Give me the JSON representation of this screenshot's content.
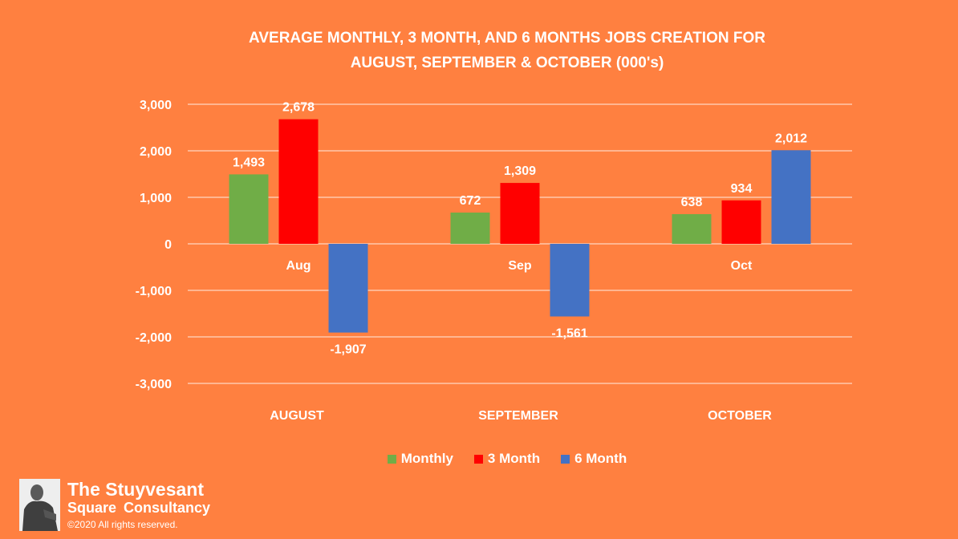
{
  "title_lines": [
    "AVERAGE MONTHLY, 3 MONTH, AND 6 MONTHS JOBS CREATION  FOR",
    "AUGUST, SEPTEMBER & OCTOBER (000's)"
  ],
  "chart_data": {
    "type": "bar",
    "title": "AVERAGE MONTHLY, 3 MONTH, AND 6 MONTHS JOBS CREATION  FOR AUGUST, SEPTEMBER & OCTOBER (000's)",
    "categories": [
      "AUGUST",
      "SEPTEMBER",
      "OCTOBER"
    ],
    "inner_labels": [
      "Aug",
      "Sep",
      "Oct"
    ],
    "series": [
      {
        "name": "Monthly",
        "color": "#70AD47",
        "values": [
          1493,
          672,
          638
        ],
        "labels": [
          "1,493",
          "672",
          "638"
        ]
      },
      {
        "name": "3 Month",
        "color": "#FF0000",
        "values": [
          2678,
          1309,
          934
        ],
        "labels": [
          "2,678",
          "1,309",
          "934"
        ]
      },
      {
        "name": "6 Month",
        "color": "#4472C4",
        "values": [
          -1907,
          -1561,
          2012
        ],
        "labels": [
          "-1,907",
          "-1,561",
          "2,012"
        ]
      }
    ],
    "y_ticks": [
      3000,
      2000,
      1000,
      0,
      -1000,
      -2000,
      -3000
    ],
    "y_tick_labels": [
      "3,000",
      "2,000",
      "1,000",
      "0",
      "-1,000",
      "-2,000",
      "-3,000"
    ],
    "ylim": [
      -3000,
      3000
    ],
    "grid": true,
    "legend_position": "bottom"
  },
  "brand": {
    "line1": "The Stuyvesant",
    "line2": "Square  Consultancy",
    "line3": "©2020 All rights reserved."
  }
}
